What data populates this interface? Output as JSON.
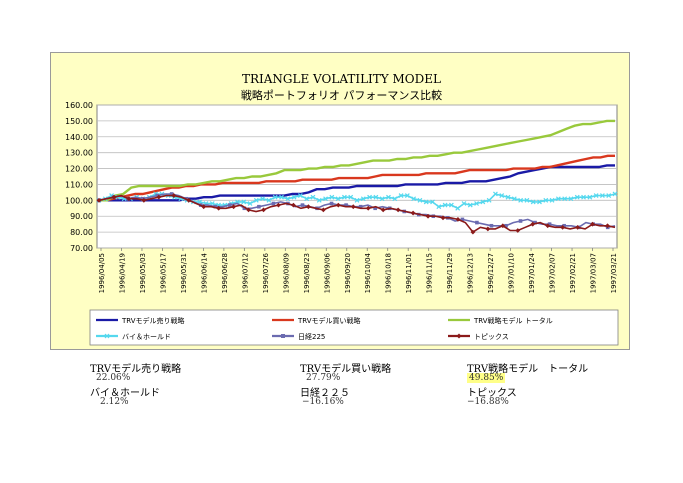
{
  "chart_data": {
    "type": "line",
    "title": "TRIANGLE VOLATILITY MODEL",
    "subtitle": "戦略ポートフォリオ パフォーマンス比較",
    "ylim": [
      70,
      160
    ],
    "yticks": [
      "160.00",
      "150.00",
      "140.00",
      "130.00",
      "120.00",
      "110.00",
      "100.00",
      "90.00",
      "80.00",
      "70.00"
    ],
    "x_tick_labels": [
      "1996/04/05",
      "1996/04/19",
      "1996/05/03",
      "1996/05/17",
      "1996/05/31",
      "1996/06/14",
      "1996/06/28",
      "1996/07/12",
      "1996/07/26",
      "1996/08/09",
      "1996/08/23",
      "1996/09/06",
      "1996/09/20",
      "1996/10/04",
      "1996/10/18",
      "1996/11/01",
      "1996/11/15",
      "1996/11/29",
      "1996/12/13",
      "1996/12/27",
      "1997/01/10",
      "1997/01/24",
      "1997/02/07",
      "1997/02/21",
      "1997/03/07",
      "1997/03/21"
    ],
    "grid": true,
    "legend_position": "bottom",
    "series": [
      {
        "name": "TRVモデル売り戦略",
        "color": "#1a1aa6",
        "marker": "none",
        "values": [
          100,
          100,
          100,
          100,
          100,
          100,
          100,
          100,
          100,
          100,
          100,
          101,
          101,
          102,
          102,
          103,
          103,
          103,
          103,
          103,
          103,
          103,
          103,
          103,
          104,
          104,
          105,
          107,
          107,
          108,
          108,
          108,
          109,
          109,
          109,
          109,
          109,
          109,
          110,
          110,
          110,
          110,
          110,
          111,
          111,
          111,
          112,
          112,
          112,
          113,
          114,
          115,
          117,
          118,
          119,
          120,
          121,
          121,
          121,
          121,
          121,
          121,
          121,
          122,
          122
        ]
      },
      {
        "name": "TRVモデル買い戦略",
        "color": "#d9381e",
        "marker": "none",
        "values": [
          100,
          100,
          101,
          102,
          103,
          104,
          104,
          105,
          106,
          107,
          108,
          108,
          109,
          109,
          110,
          110,
          110,
          111,
          111,
          111,
          111,
          111,
          111,
          112,
          112,
          112,
          112,
          112,
          113,
          113,
          113,
          113,
          113,
          114,
          114,
          114,
          114,
          114,
          115,
          116,
          116,
          116,
          116,
          116,
          116,
          117,
          117,
          117,
          117,
          117,
          118,
          119,
          119,
          119,
          119,
          119,
          119,
          120,
          120,
          120,
          120,
          121,
          121,
          122,
          123,
          124,
          125,
          126,
          127,
          127,
          128,
          128
        ]
      },
      {
        "name": "TRV戦略モデル トータル",
        "color": "#99c93c",
        "marker": "none",
        "values": [
          100,
          100,
          103,
          104,
          108,
          109,
          109,
          109,
          109,
          109,
          109,
          110,
          110,
          111,
          112,
          112,
          113,
          114,
          114,
          115,
          115,
          116,
          117,
          119,
          119,
          119,
          120,
          120,
          121,
          121,
          122,
          122,
          123,
          124,
          125,
          125,
          125,
          126,
          126,
          127,
          127,
          128,
          128,
          129,
          130,
          130,
          131,
          132,
          133,
          134,
          135,
          136,
          137,
          138,
          139,
          140,
          141,
          143,
          145,
          147,
          148,
          148,
          149,
          150,
          150
        ]
      },
      {
        "name": "バイ＆ホールド",
        "color": "#55d8ee",
        "marker": "x",
        "values": [
          100,
          101,
          103,
          102,
          101,
          101,
          102,
          101,
          102,
          104,
          104,
          103,
          102,
          101,
          100,
          99,
          99,
          98,
          98,
          97,
          97,
          98,
          99,
          99,
          98,
          100,
          101,
          100,
          102,
          102,
          101,
          102,
          103,
          101,
          102,
          100,
          101,
          102,
          101,
          102,
          102,
          100,
          101,
          102,
          102,
          101,
          102,
          101,
          103,
          103,
          101,
          100,
          99,
          99,
          96,
          97,
          97,
          95,
          98,
          97,
          98,
          99,
          100,
          104,
          103,
          102,
          101,
          100,
          100,
          99,
          99,
          100,
          100,
          101,
          101,
          101,
          102,
          102,
          102,
          103,
          103,
          103,
          104
        ]
      },
      {
        "name": "日経225",
        "color": "#6b6bb0",
        "marker": "square",
        "values": [
          100,
          101,
          102,
          103,
          101,
          102,
          101,
          102,
          103,
          104,
          104,
          103,
          101,
          99,
          97,
          97,
          96,
          96,
          97,
          98,
          95,
          95,
          96,
          97,
          98,
          99,
          98,
          96,
          97,
          96,
          95,
          97,
          98,
          97,
          97,
          96,
          96,
          97,
          95,
          96,
          95,
          94,
          93,
          92,
          91,
          91,
          90,
          90,
          89,
          87,
          88,
          87,
          86,
          85,
          84,
          84,
          84,
          86,
          87,
          88,
          86,
          85,
          85,
          84,
          84,
          84,
          83,
          86,
          85,
          85,
          83,
          84
        ]
      },
      {
        "name": "トピックス",
        "color": "#8b1a1a",
        "marker": "diamond",
        "values": [
          100,
          101,
          102,
          103,
          101,
          101,
          100,
          101,
          102,
          103,
          103,
          102,
          100,
          98,
          96,
          96,
          95,
          95,
          96,
          97,
          94,
          93,
          94,
          96,
          97,
          98,
          97,
          95,
          96,
          95,
          94,
          96,
          97,
          96,
          96,
          95,
          95,
          96,
          94,
          95,
          94,
          93,
          92,
          91,
          90,
          90,
          89,
          89,
          88,
          86,
          80,
          83,
          82,
          82,
          84,
          81,
          81,
          83,
          85,
          86,
          84,
          83,
          83,
          82,
          83,
          82,
          85,
          84,
          84,
          83
        ]
      }
    ]
  },
  "summary": [
    {
      "label": "TRVモデル売り戦略",
      "value": "22.06%"
    },
    {
      "label": "TRVモデル買い戦略",
      "value": "27.79%"
    },
    {
      "label": "TRV戦略モデル　トータル",
      "value": "49.85%"
    },
    {
      "label": "バイ＆ホールド",
      "value": "2.12%"
    },
    {
      "label": "日経２２５",
      "value": "−16.16%"
    },
    {
      "label": "トピックス",
      "value": "−16.88%"
    }
  ],
  "legend_labels": [
    "TRVモデル売り戦略",
    "TRVモデル買い戦略",
    "TRV戦略モデル トータル",
    "バイ＆ホールド",
    "日経225",
    "トピックス"
  ]
}
